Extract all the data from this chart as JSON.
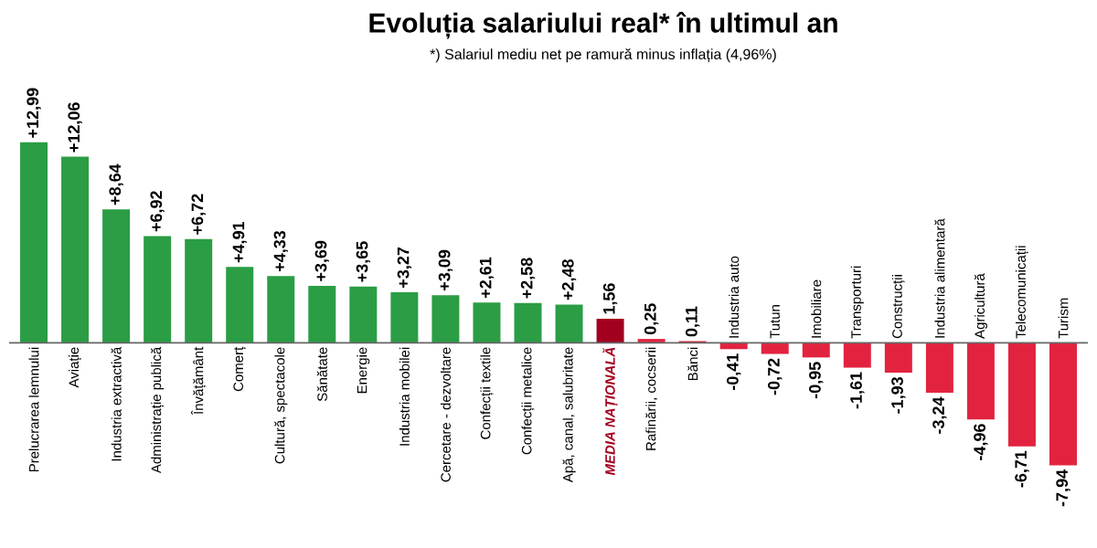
{
  "chart_data": {
    "type": "bar",
    "title": "Evoluția salariului real* în ultimul an",
    "subtitle": "*) Salariul mediu net pe ramură minus inflația (4,96%)",
    "categories": [
      "Prelucrarea lemnului",
      "Aviație",
      "Industria extractivă",
      "Administrație publică",
      "Învățământ",
      "Comerț",
      "Cultură, spectacole",
      "Sănătate",
      "Energie",
      "Industria mobilei",
      "Cercetare - dezvoltare",
      "Confecții textile",
      "Confecții metalice",
      "Apă, canal, salubritate",
      "MEDIA NAȚIONALĂ",
      "Rafinării, cocserii",
      "Bănci",
      "Industria auto",
      "Tutun",
      "Imobiliare",
      "Transporturi",
      "Construcții",
      "Industria alimentară",
      "Agricultură",
      "Telecomunicații",
      "Turism"
    ],
    "values": [
      12.99,
      12.06,
      8.64,
      6.92,
      6.72,
      4.91,
      4.33,
      3.69,
      3.65,
      3.27,
      3.09,
      2.61,
      2.58,
      2.48,
      1.56,
      0.25,
      0.11,
      -0.41,
      -0.72,
      -0.95,
      -1.61,
      -1.93,
      -3.24,
      -4.96,
      -6.71,
      -7.94
    ],
    "value_labels": [
      "+12,99",
      "+12,06",
      "+8,64",
      "+6,92",
      "+6,72",
      "+4,91",
      "+4,33",
      "+3,69",
      "+3,65",
      "+3,27",
      "+3,09",
      "+2,61",
      "+2,58",
      "+2,48",
      "1,56",
      "0,25",
      "0,11",
      "-0,41",
      "-0,72",
      "-0,95",
      "-1,61",
      "-1,93",
      "-3,24",
      "-4,96",
      "-6,71",
      "-7,94"
    ],
    "colors": [
      "#2a9d45",
      "#2a9d45",
      "#2a9d45",
      "#2a9d45",
      "#2a9d45",
      "#2a9d45",
      "#2a9d45",
      "#2a9d45",
      "#2a9d45",
      "#2a9d45",
      "#2a9d45",
      "#2a9d45",
      "#2a9d45",
      "#2a9d45",
      "#a3001f",
      "#e2233f",
      "#e2233f",
      "#e2233f",
      "#e2233f",
      "#e2233f",
      "#e2233f",
      "#e2233f",
      "#e2233f",
      "#e2233f",
      "#e2233f",
      "#e2233f"
    ]
  }
}
